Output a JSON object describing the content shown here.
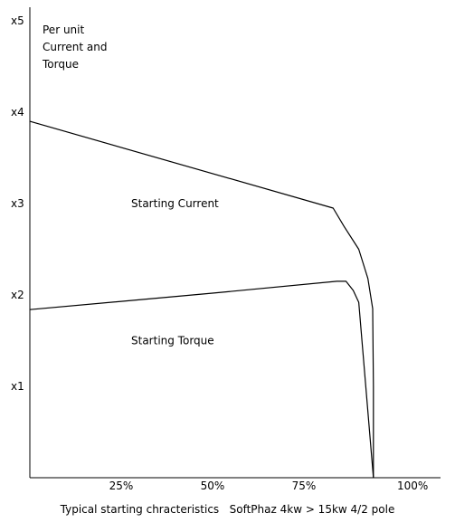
{
  "chart_data": {
    "type": "line",
    "ylabel_lines": [
      "Per unit",
      "Current and",
      "Torque"
    ],
    "y_ticks": [
      {
        "value": 1,
        "label": "x1"
      },
      {
        "value": 2,
        "label": "x2"
      },
      {
        "value": 3,
        "label": "x3"
      },
      {
        "value": 4,
        "label": "x4"
      },
      {
        "value": 5,
        "label": "x5"
      }
    ],
    "x_ticks": [
      {
        "value": 25,
        "label": "25%"
      },
      {
        "value": 50,
        "label": "50%"
      },
      {
        "value": 75,
        "label": "75%"
      },
      {
        "value": 100,
        "label": "100%"
      }
    ],
    "xlim": [
      0,
      100
    ],
    "ylim": [
      0,
      5
    ],
    "grid": false,
    "series": [
      {
        "name": "Starting Current",
        "points": [
          [
            0,
            3.9
          ],
          [
            83,
            2.95
          ],
          [
            86,
            2.75
          ],
          [
            90,
            2.5
          ],
          [
            92.5,
            2.18
          ],
          [
            93.8,
            1.85
          ],
          [
            94,
            1.0
          ],
          [
            94,
            0
          ]
        ]
      },
      {
        "name": "Starting Torque",
        "points": [
          [
            0,
            1.84
          ],
          [
            50,
            2.02
          ],
          [
            84,
            2.15
          ],
          [
            86.5,
            2.15
          ],
          [
            88.5,
            2.05
          ],
          [
            90,
            1.92
          ],
          [
            94,
            0
          ]
        ]
      }
    ],
    "labels": [
      {
        "text": "Starting Current",
        "x": 40,
        "y": 3.0
      },
      {
        "text": "Starting Torque",
        "x": 40,
        "y": 1.5
      }
    ]
  },
  "caption": "Typical starting chracteristics   SoftPhaz 4kw > 15kw 4/2 pole",
  "colors": {
    "line": "#000000",
    "background": "#ffffff"
  }
}
